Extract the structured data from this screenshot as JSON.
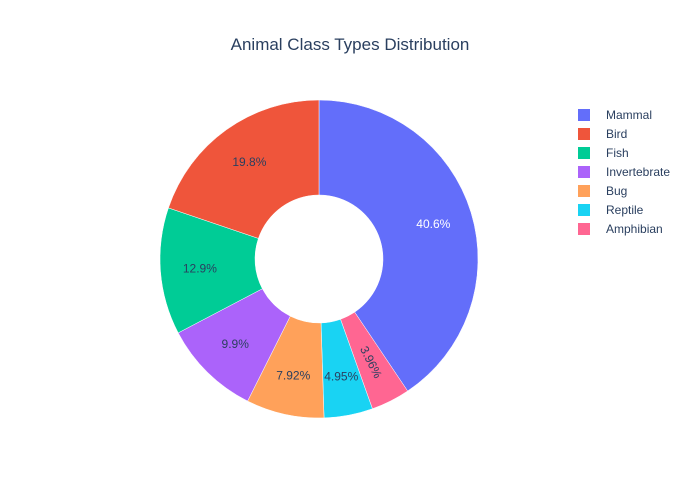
{
  "chart_data": {
    "type": "pie",
    "hole": true,
    "title": "Animal Class Types Distribution",
    "legend_position": "top-right",
    "slices": [
      {
        "label": "Mammal",
        "value": 40.6,
        "text": "40.6%",
        "color": "#636efa",
        "text_color": "#ffffff"
      },
      {
        "label": "Amphibian",
        "value": 3.96,
        "text": "3.96%",
        "color": "#ff6692",
        "text_color": "#2a3f5f"
      },
      {
        "label": "Reptile",
        "value": 4.95,
        "text": "4.95%",
        "color": "#19d3f3",
        "text_color": "#2a3f5f"
      },
      {
        "label": "Bug",
        "value": 7.92,
        "text": "7.92%",
        "color": "#ffa15a",
        "text_color": "#2a3f5f"
      },
      {
        "label": "Invertebrate",
        "value": 9.9,
        "text": "9.9%",
        "color": "#ab63fa",
        "text_color": "#2a3f5f"
      },
      {
        "label": "Fish",
        "value": 12.9,
        "text": "12.9%",
        "color": "#00cc96",
        "text_color": "#2a3f5f"
      },
      {
        "label": "Bird",
        "value": 19.8,
        "text": "19.8%",
        "color": "#ef553b",
        "text_color": "#2a3f5f"
      }
    ],
    "legend": [
      {
        "label": "Mammal",
        "color": "#636efa"
      },
      {
        "label": "Bird",
        "color": "#ef553b"
      },
      {
        "label": "Fish",
        "color": "#00cc96"
      },
      {
        "label": "Invertebrate",
        "color": "#ab63fa"
      },
      {
        "label": "Bug",
        "color": "#ffa15a"
      },
      {
        "label": "Reptile",
        "color": "#19d3f3"
      },
      {
        "label": "Amphibian",
        "color": "#ff6692"
      }
    ]
  }
}
